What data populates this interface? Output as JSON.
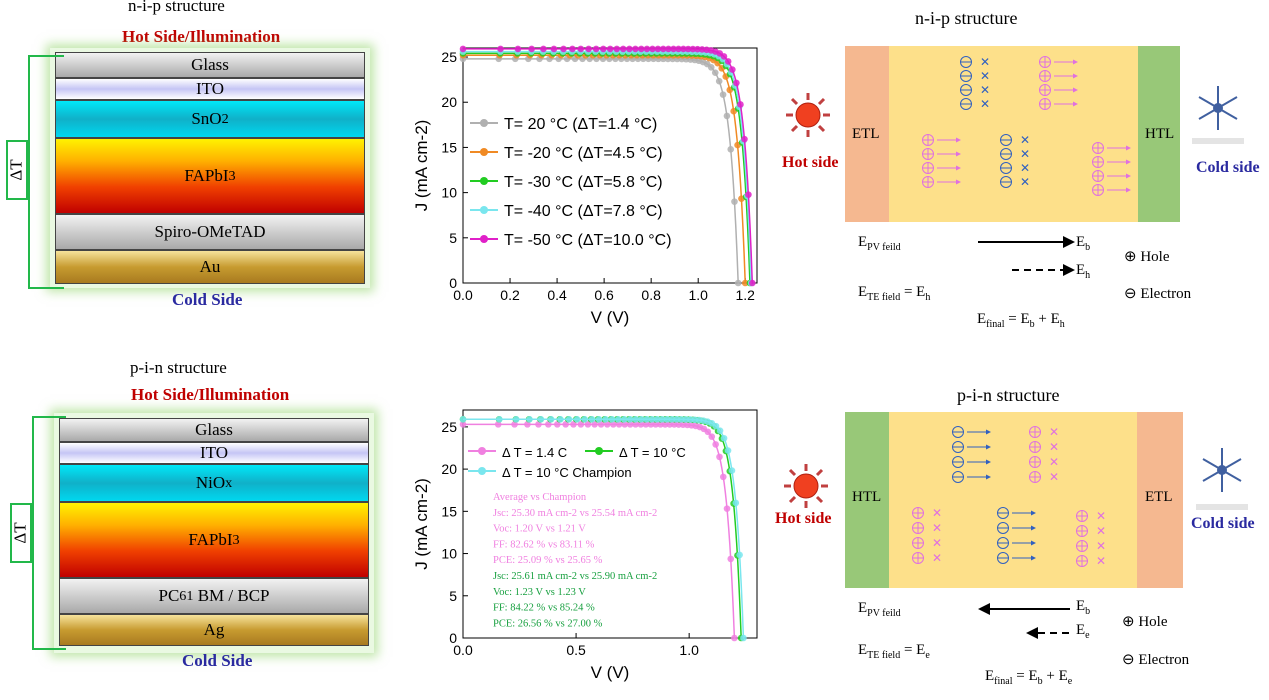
{
  "top": {
    "stack_title": "n-i-p structure",
    "hot_label": "Hot Side/Illumination",
    "cold_label": "Cold Side",
    "delta_t": "ΔT",
    "layers": [
      "Glass",
      "ITO",
      "SnO",
      "FAPbI",
      "Spiro-OMeTAD",
      "Au"
    ],
    "layer_subs": [
      "",
      "",
      "2",
      "3",
      "",
      ""
    ],
    "band": {
      "title": "n-i-p structure",
      "left": "ETL",
      "right": "HTL",
      "hot": "Hot side",
      "cold": "Cold side",
      "e_pv": "E",
      "e_pv_sub": "PV feild",
      "e_b": "E",
      "e_b_sub": "b",
      "e_h": "E",
      "e_h_sub": "h",
      "e_te": "E",
      "e_te_sub": "TE field",
      "e_te_rhs": " = E",
      "e_te_rhs_sub": "h",
      "e_final": "E",
      "e_final_sub": "final",
      "e_final_mid": " = E",
      "e_final_mid_sub": "b",
      "e_final_plus": " + E",
      "e_final_plus_sub": "h",
      "hole": "Hole",
      "electron": "Electron"
    }
  },
  "bottom": {
    "stack_title": "p-i-n structure",
    "hot_label": "Hot Side/Illumination",
    "cold_label": "Cold Side",
    "delta_t": "ΔT",
    "layers": [
      "Glass",
      "ITO",
      "NiO",
      "FAPbI",
      "PC",
      "Ag"
    ],
    "layer_subs": [
      "",
      "",
      "x",
      "3",
      "61",
      ""
    ],
    "layer_tail": [
      "",
      "",
      "",
      "",
      " BM / BCP",
      ""
    ],
    "band": {
      "title": "p-i-n structure",
      "left": "HTL",
      "right": "ETL",
      "hot": "Hot side",
      "cold": "Cold side",
      "e_pv": "E",
      "e_pv_sub": "PV feild",
      "e_b": "E",
      "e_b_sub": "b",
      "e_e": "E",
      "e_e_sub": "e",
      "e_te": "E",
      "e_te_sub": "TE field",
      "e_te_rhs": " = E",
      "e_te_rhs_sub": "e",
      "e_final": "E",
      "e_final_sub": "final",
      "e_final_mid": " = E",
      "e_final_mid_sub": "b",
      "e_final_plus": " + E",
      "e_final_plus_sub": "e",
      "hole": "Hole",
      "electron": "Electron"
    }
  },
  "chart_data": [
    {
      "type": "line",
      "xlabel": "V (V)",
      "ylabel": "J (mA cm-2)",
      "xlim": [
        0.0,
        1.25
      ],
      "ylim": [
        0,
        26
      ],
      "xticks": [
        "0.0",
        "0.2",
        "0.4",
        "0.6",
        "0.8",
        "1.0",
        "1.2"
      ],
      "yticks": [
        "0",
        "5",
        "10",
        "15",
        "20",
        "25"
      ],
      "legend_position": "left",
      "series": [
        {
          "name": "T= 20 °C  (ΔT=1.4 °C)",
          "color": "#b0b0b0",
          "jsc": 24.8,
          "voc": 1.17
        },
        {
          "name": "T= -20 °C (ΔT=4.5 °C)",
          "color": "#f08a24",
          "jsc": 25.2,
          "voc": 1.2
        },
        {
          "name": "T= -30 °C (ΔT=5.8 °C)",
          "color": "#22cc22",
          "jsc": 25.4,
          "voc": 1.22
        },
        {
          "name": "T= -40 °C (ΔT=7.8 °C)",
          "color": "#7ae6ee",
          "jsc": 25.6,
          "voc": 1.225
        },
        {
          "name": "T= -50 °C (ΔT=10.0 °C)",
          "color": "#e020c8",
          "jsc": 25.9,
          "voc": 1.23
        }
      ]
    },
    {
      "type": "line",
      "xlabel": "V (V)",
      "ylabel": "J (mA cm-2)",
      "xlim": [
        0.0,
        1.3
      ],
      "ylim": [
        0,
        27
      ],
      "xticks": [
        "0.0",
        "0.5",
        "1.0"
      ],
      "yticks": [
        "0",
        "5",
        "10",
        "15",
        "20",
        "25"
      ],
      "legend_position": "top-left",
      "series": [
        {
          "name": "Δ T = 1.4 C",
          "color": "#f080e0",
          "jsc": 25.3,
          "voc": 1.2
        },
        {
          "name": "Δ T = 10 °C",
          "color": "#22cc22",
          "jsc": 25.9,
          "voc": 1.23
        },
        {
          "name": "Δ T = 10 °C  Champion",
          "color": "#7ae6ee",
          "jsc": 25.9,
          "voc": 1.24
        }
      ],
      "annotations": [
        {
          "text": "Average vs Champion",
          "color": "#f080e0"
        },
        {
          "text": "Jsc: 25.30 mA cm-2 vs 25.54 mA cm-2",
          "color": "#f080e0"
        },
        {
          "text": "Voc: 1.20 V  vs 1.21 V",
          "color": "#f080e0"
        },
        {
          "text": "FF: 82.62 %  vs 83.11 %",
          "color": "#f080e0"
        },
        {
          "text": "PCE: 25.09 %  vs 25.65 %",
          "color": "#f080e0"
        },
        {
          "text": "Jsc: 25.61 mA cm-2 vs 25.90 mA cm-2",
          "color": "#18a040"
        },
        {
          "text": "Voc: 1.23 V  vs 1.23 V",
          "color": "#18a040"
        },
        {
          "text": "FF: 84.22 %  vs 85.24 %",
          "color": "#18a040"
        },
        {
          "text": "PCE: 26.56 %  vs 27.00 %",
          "color": "#18a040"
        }
      ]
    }
  ]
}
